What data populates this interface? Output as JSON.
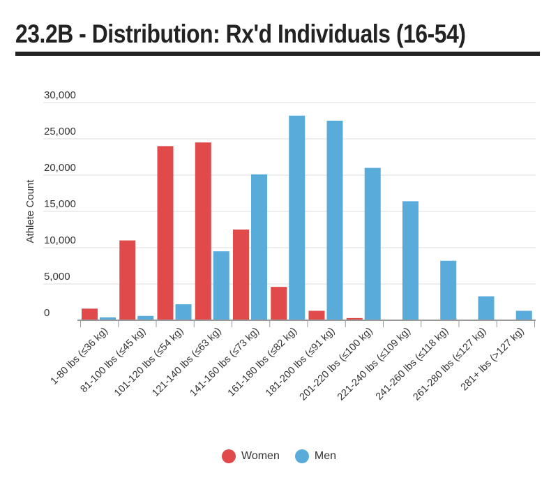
{
  "page": {
    "title": "23.2B - Distribution: Rx'd Individuals (16-54)"
  },
  "colors": {
    "women": "#e04a4a",
    "men": "#59acd9",
    "grid": "#dddddd",
    "axis": "#999999",
    "text": "#333333"
  },
  "chart_data": {
    "type": "bar",
    "title": "23.2B - Distribution: Rx'd Individuals (16-54)",
    "xlabel": "",
    "ylabel": "Athlete Count",
    "ylim": [
      0,
      30000
    ],
    "yticks": [
      0,
      5000,
      10000,
      15000,
      20000,
      25000,
      30000
    ],
    "ytick_labels": [
      "0",
      "5,000",
      "10,000",
      "15,000",
      "20,000",
      "25,000",
      "30,000"
    ],
    "grid": true,
    "legend_position": "bottom-center",
    "categories": [
      "1-80 lbs (≤36 kg)",
      "81-100 lbs (≤45 kg)",
      "101-120 lbs (≤54 kg)",
      "121-140 lbs (≤63 kg)",
      "141-160 lbs (≤73 kg)",
      "161-180 lbs (≤82 kg)",
      "181-200 lbs (≤91 kg)",
      "201-220 lbs (≤100 kg)",
      "221-240 lbs (≤109 kg)",
      "241-260 lbs (≤118 kg)",
      "261-280 lbs (≤127 kg)",
      "281+ lbs (>127 kg)"
    ],
    "series": [
      {
        "name": "Women",
        "color": "#e04a4a",
        "values": [
          1600,
          11000,
          24000,
          24500,
          12500,
          4600,
          1300,
          300,
          0,
          0,
          0,
          0
        ]
      },
      {
        "name": "Men",
        "color": "#59acd9",
        "values": [
          400,
          600,
          2200,
          9500,
          20100,
          28200,
          27500,
          21000,
          16400,
          8200,
          3300,
          1300
        ]
      }
    ]
  }
}
